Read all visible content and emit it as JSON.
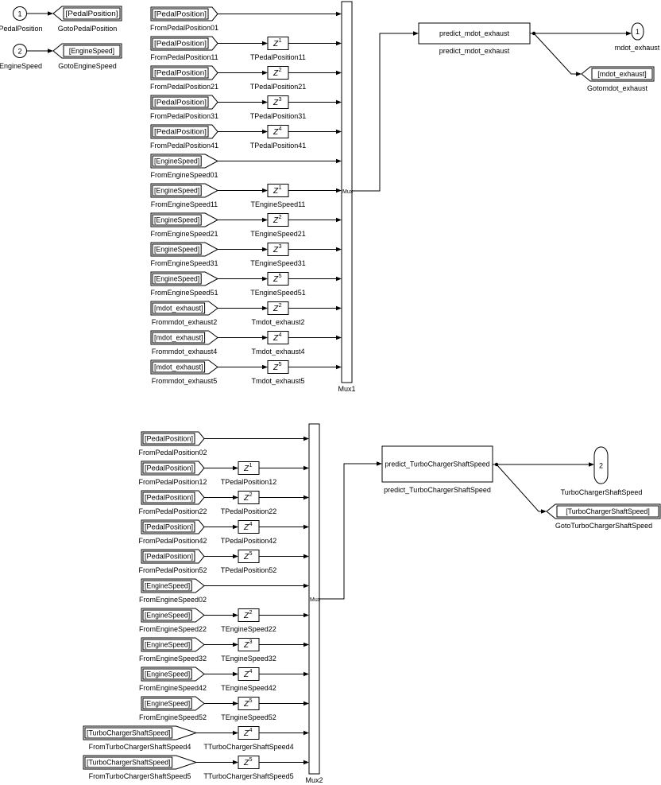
{
  "delay_symbol": "Z",
  "colors": {
    "background": "#ffffff",
    "stroke": "#000000",
    "block_fill": "#ffffff"
  },
  "inports": [
    {
      "number": "1",
      "name": "PedalPosition",
      "goto_tag": "[PedalPosition]",
      "goto_name": "GotoPedalPosition"
    },
    {
      "number": "2",
      "name": "EngineSpeed",
      "goto_tag": "[EngineSpeed]",
      "goto_name": "GotoEngineSpeed"
    }
  ],
  "groups": [
    {
      "mux_text": "Mux",
      "mux_name": "Mux1",
      "rows": [
        {
          "tag": "[PedalPosition]",
          "from_name": "FromPedalPosition01",
          "delay_exp": null,
          "delay_name": null
        },
        {
          "tag": "[PedalPosition]",
          "from_name": "FromPedalPosition11",
          "delay_exp": "1",
          "delay_name": "TPedalPosition11"
        },
        {
          "tag": "[PedalPosition]",
          "from_name": "FromPedalPosition21",
          "delay_exp": "2",
          "delay_name": "TPedalPosition21"
        },
        {
          "tag": "[PedalPosition]",
          "from_name": "FromPedalPosition31",
          "delay_exp": "3",
          "delay_name": "TPedalPosition31"
        },
        {
          "tag": "[PedalPosition]",
          "from_name": "FromPedalPosition41",
          "delay_exp": "4",
          "delay_name": "TPedalPosition41"
        },
        {
          "tag": "[EngineSpeed]",
          "from_name": "FromEngineSpeed01",
          "delay_exp": null,
          "delay_name": null
        },
        {
          "tag": "[EngineSpeed]",
          "from_name": "FromEngineSpeed11",
          "delay_exp": "1",
          "delay_name": "TEngineSpeed11"
        },
        {
          "tag": "[EngineSpeed]",
          "from_name": "FromEngineSpeed21",
          "delay_exp": "2",
          "delay_name": "TEngineSpeed21"
        },
        {
          "tag": "[EngineSpeed]",
          "from_name": "FromEngineSpeed31",
          "delay_exp": "3",
          "delay_name": "TEngineSpeed31"
        },
        {
          "tag": "[EngineSpeed]",
          "from_name": "FromEngineSpeed51",
          "delay_exp": "5",
          "delay_name": "TEngineSpeed51"
        },
        {
          "tag": "[mdot_exhaust]",
          "from_name": "Frommdot_exhaust2",
          "delay_exp": "2",
          "delay_name": "Tmdot_exhaust2"
        },
        {
          "tag": "[mdot_exhaust]",
          "from_name": "Frommdot_exhaust4",
          "delay_exp": "4",
          "delay_name": "Tmdot_exhaust4"
        },
        {
          "tag": "[mdot_exhaust]",
          "from_name": "Frommdot_exhaust5",
          "delay_exp": "5",
          "delay_name": "Tmdot_exhaust5"
        }
      ],
      "predict": {
        "text": "predict_mdot_exhaust",
        "name": "predict_mdot_exhaust"
      },
      "outport": {
        "number": "1",
        "name": "mdot_exhaust"
      },
      "goto": {
        "tag": "[mdot_exhaust]",
        "name": "Gotomdot_exhaust"
      }
    },
    {
      "mux_text": "Mux",
      "mux_name": "Mux2",
      "rows": [
        {
          "tag": "[PedalPosition]",
          "from_name": "FromPedalPosition02",
          "delay_exp": null,
          "delay_name": null
        },
        {
          "tag": "[PedalPosition]",
          "from_name": "FromPedalPosition12",
          "delay_exp": "1",
          "delay_name": "TPedalPosition12"
        },
        {
          "tag": "[PedalPosition]",
          "from_name": "FromPedalPosition22",
          "delay_exp": "2",
          "delay_name": "TPedalPosition22"
        },
        {
          "tag": "[PedalPosition]",
          "from_name": "FromPedalPosition42",
          "delay_exp": "4",
          "delay_name": "TPedalPosition42"
        },
        {
          "tag": "[PedalPosition]",
          "from_name": "FromPedalPosition52",
          "delay_exp": "5",
          "delay_name": "TPedalPosition52"
        },
        {
          "tag": "[EngineSpeed]",
          "from_name": "FromEngineSpeed02",
          "delay_exp": null,
          "delay_name": null
        },
        {
          "tag": "[EngineSpeed]",
          "from_name": "FromEngineSpeed22",
          "delay_exp": "2",
          "delay_name": "TEngineSpeed22"
        },
        {
          "tag": "[EngineSpeed]",
          "from_name": "FromEngineSpeed32",
          "delay_exp": "3",
          "delay_name": "TEngineSpeed32"
        },
        {
          "tag": "[EngineSpeed]",
          "from_name": "FromEngineSpeed42",
          "delay_exp": "4",
          "delay_name": "TEngineSpeed42"
        },
        {
          "tag": "[EngineSpeed]",
          "from_name": "FromEngineSpeed52",
          "delay_exp": "5",
          "delay_name": "TEngineSpeed52"
        },
        {
          "tag": "[TurboChargerShaftSpeed]",
          "from_name": "FromTurboChargerShaftSpeed4",
          "delay_exp": "4",
          "delay_name": "TTurboChargerShaftSpeed4"
        },
        {
          "tag": "[TurboChargerShaftSpeed]",
          "from_name": "FromTurboChargerShaftSpeed5",
          "delay_exp": "5",
          "delay_name": "TTurboChargerShaftSpeed5"
        }
      ],
      "predict": {
        "text": "predict_TurboChargerShaftSpeed",
        "name": "predict_TurboChargerShaftSpeed"
      },
      "outport": {
        "number": "2",
        "name": "TurboChargerShaftSpeed"
      },
      "goto": {
        "tag": "[TurboChargerShaftSpeed]",
        "name": "GotoTurboChargerShaftSpeed"
      }
    }
  ]
}
